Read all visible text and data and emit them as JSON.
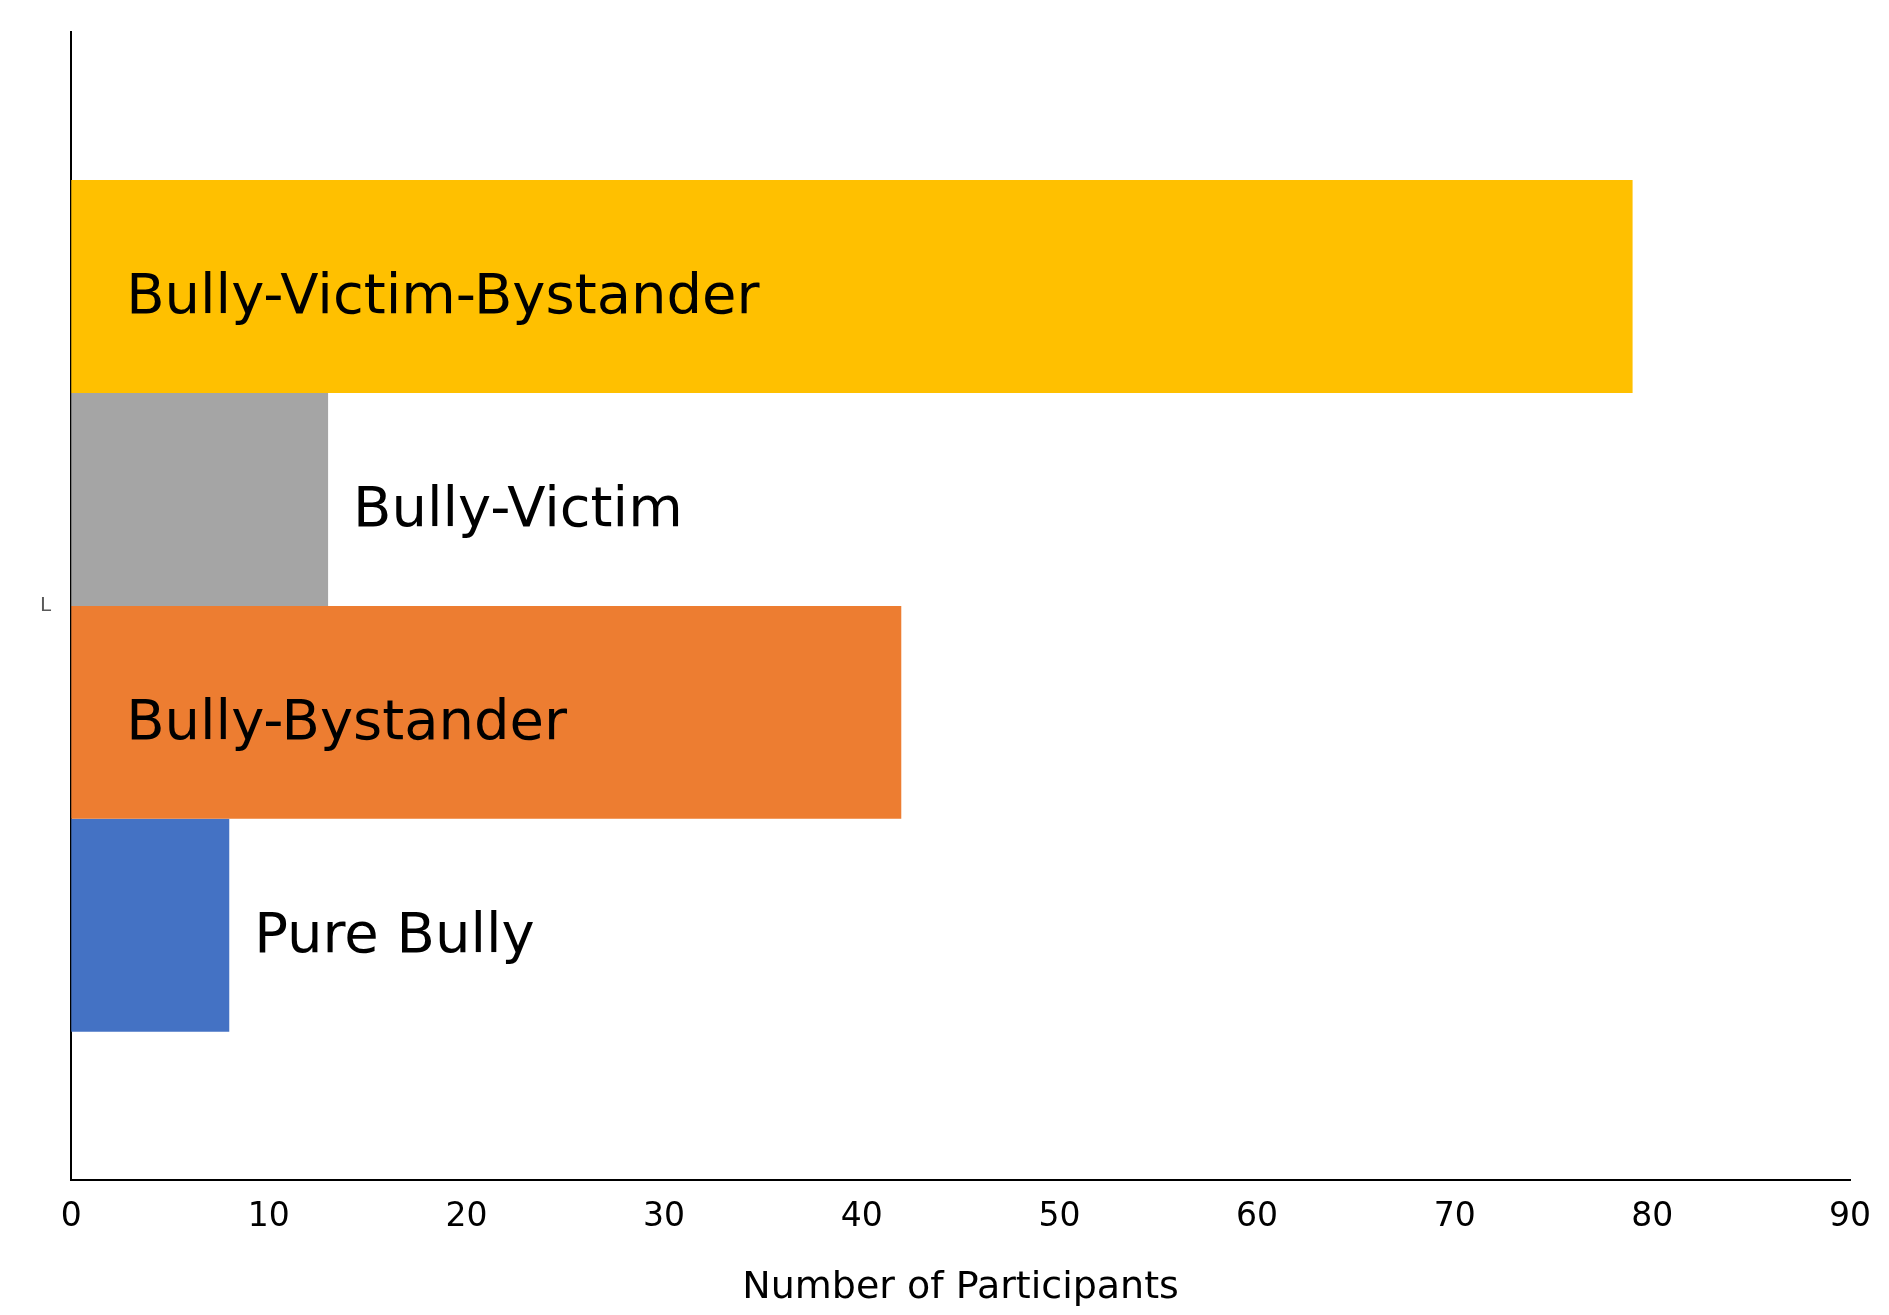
{
  "chart_data": {
    "type": "bar",
    "orientation": "horizontal",
    "xlabel": "Number of Participants",
    "categories": [
      "L"
    ],
    "series": [
      {
        "name": "Bully-Victim-Bystander",
        "color": "#ffc000",
        "values": [
          79
        ]
      },
      {
        "name": "Bully-Victim",
        "color": "#a5a5a5",
        "values": [
          13
        ]
      },
      {
        "name": "Bully-Bystander",
        "color": "#ed7d31",
        "values": [
          42
        ]
      },
      {
        "name": "Pure Bully",
        "color": "#4472c4",
        "values": [
          8
        ]
      }
    ],
    "xlim": [
      0,
      90
    ],
    "xticks": [
      0,
      10,
      20,
      30,
      40,
      50,
      60,
      70,
      80,
      90
    ],
    "grid": false,
    "legend": false
  }
}
